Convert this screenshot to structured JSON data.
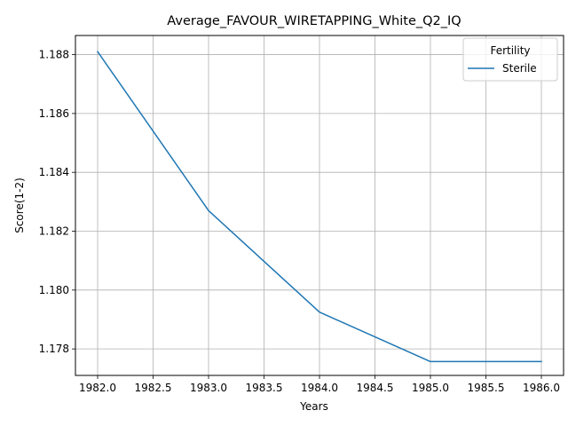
{
  "chart_data": {
    "type": "line",
    "title": "Average_FAVOUR_WIRETAPPING_White_Q2_IQ",
    "xlabel": "Years",
    "ylabel": "Score(1-2)",
    "x": [
      1982,
      1983,
      1984,
      1985,
      1986
    ],
    "series": [
      {
        "name": "Sterile",
        "color": "#1f77b4",
        "values": [
          1.1881,
          1.1827,
          1.17925,
          1.17757,
          1.17757
        ]
      }
    ],
    "xlim": [
      1981.8,
      1986.2
    ],
    "ylim": [
      1.1771,
      1.18865
    ],
    "xticks": [
      "1982.0",
      "1982.5",
      "1983.0",
      "1983.5",
      "1984.0",
      "1984.5",
      "1985.0",
      "1985.5",
      "1986.0"
    ],
    "yticks": [
      "1.178",
      "1.180",
      "1.182",
      "1.184",
      "1.186",
      "1.188"
    ],
    "legend": {
      "title": "Fertility",
      "placement": "top-right"
    },
    "grid": true
  }
}
